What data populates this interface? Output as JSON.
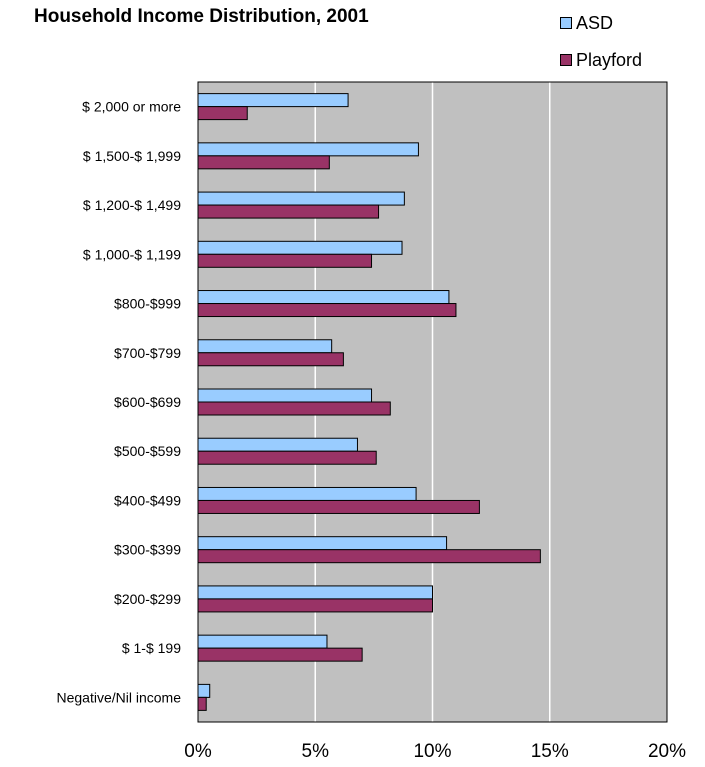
{
  "chart_data": {
    "type": "bar",
    "orientation": "horizontal",
    "title": "Household Income Distribution, 2001",
    "xlabel": "",
    "ylabel": "",
    "xlim": [
      0,
      20
    ],
    "x_ticks": [
      "0%",
      "5%",
      "10%",
      "15%",
      "20%"
    ],
    "grid": true,
    "legend_position": "top-right",
    "categories": [
      "$ 2,000 or more",
      "$ 1,500-$ 1,999",
      "$ 1,200-$ 1,499",
      "$ 1,000-$ 1,199",
      "$800-$999",
      "$700-$799",
      "$600-$699",
      "$500-$599",
      "$400-$499",
      "$300-$399",
      "$200-$299",
      "$ 1-$ 199",
      "Negative/Nil income"
    ],
    "series": [
      {
        "name": "ASD",
        "color": "#99CCFF",
        "values": [
          6.4,
          9.4,
          8.8,
          8.7,
          10.7,
          5.7,
          7.4,
          6.8,
          9.3,
          10.6,
          10.0,
          5.5,
          0.5
        ]
      },
      {
        "name": "Playford",
        "color": "#993366",
        "values": [
          2.1,
          5.6,
          7.7,
          7.4,
          11.0,
          6.2,
          8.2,
          7.6,
          12.0,
          14.6,
          10.0,
          7.0,
          0.35
        ]
      }
    ],
    "plot_background": "#C0C0C0"
  }
}
